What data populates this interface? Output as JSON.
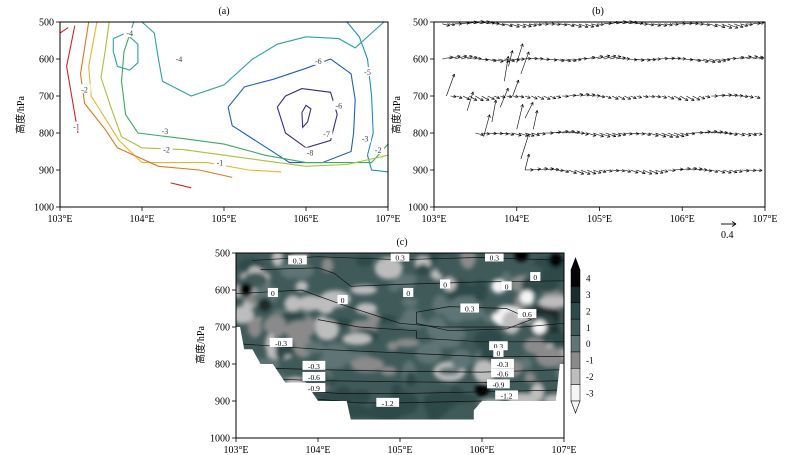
{
  "chart_data": [
    {
      "panel": "(a)",
      "type": "contour",
      "ylabel": "高度/hPa",
      "x_ticks": [
        "103°E",
        "104°E",
        "105°E",
        "106°E",
        "107°E"
      ],
      "y_ticks": [
        "500",
        "600",
        "700",
        "800",
        "900",
        "1000"
      ],
      "xlim": [
        103,
        107
      ],
      "ylim": [
        500,
        1000
      ],
      "y_inverted": true,
      "contour_labels": [
        "-4",
        "-4",
        "-2",
        "-1",
        "-3",
        "-2",
        "-1",
        "-6",
        "-7",
        "-6",
        "-8",
        "-5",
        "-3",
        "-2"
      ],
      "contours": [
        {
          "level": -8,
          "color": "#3b2a8c",
          "points": [
            [
              105.65,
              730
            ],
            [
              105.75,
              700
            ],
            [
              105.95,
              680
            ],
            [
              106.3,
              690
            ],
            [
              106.38,
              750
            ],
            [
              106.3,
              820
            ],
            [
              106.0,
              840
            ],
            [
              105.75,
              800
            ],
            [
              105.65,
              730
            ]
          ]
        },
        {
          "level": -7,
          "color": "#3b2a8c",
          "points": [
            [
              105.95,
              745
            ],
            [
              106.0,
              725
            ],
            [
              106.06,
              735
            ],
            [
              106.02,
              770
            ],
            [
              105.96,
              785
            ],
            [
              105.95,
              745
            ]
          ]
        },
        {
          "level": -6,
          "color": "#1f5fbf",
          "points": [
            [
              105.05,
              730
            ],
            [
              105.25,
              675
            ],
            [
              105.6,
              655
            ],
            [
              106.0,
              625
            ],
            [
              106.3,
              600
            ],
            [
              106.55,
              640
            ],
            [
              106.6,
              710
            ],
            [
              106.58,
              800
            ],
            [
              106.55,
              850
            ],
            [
              106.2,
              880
            ],
            [
              105.8,
              880
            ],
            [
              105.45,
              830
            ],
            [
              105.1,
              780
            ],
            [
              105.05,
              730
            ]
          ]
        },
        {
          "level": -5,
          "color": "#1e8fbf",
          "points": [
            [
              106.5,
              500
            ],
            [
              106.65,
              540
            ],
            [
              106.75,
              600
            ],
            [
              106.8,
              700
            ],
            [
              106.82,
              800
            ],
            [
              106.75,
              860
            ],
            [
              106.8,
              900
            ],
            [
              107.0,
              905
            ]
          ]
        },
        {
          "level": -4,
          "color": "#2aa3a3",
          "points": [
            [
              104.0,
              500
            ],
            [
              104.15,
              530
            ],
            [
              104.2,
              600
            ],
            [
              104.25,
              660
            ],
            [
              104.6,
              700
            ],
            [
              105.0,
              670
            ],
            [
              105.35,
              600
            ],
            [
              105.65,
              560
            ],
            [
              106.0,
              540
            ],
            [
              106.4,
              545
            ],
            [
              106.6,
              570
            ],
            [
              106.85,
              520
            ],
            [
              106.95,
              500
            ]
          ]
        },
        {
          "level": -4,
          "color": "#2aa3a3",
          "points": [
            [
              103.65,
              545
            ],
            [
              103.8,
              530
            ],
            [
              103.95,
              560
            ],
            [
              103.95,
              610
            ],
            [
              103.85,
              630
            ],
            [
              103.7,
              620
            ],
            [
              103.65,
              580
            ],
            [
              103.65,
              545
            ]
          ]
        },
        {
          "level": -3,
          "color": "#3cab64",
          "points": [
            [
              103.9,
              500
            ],
            [
              103.78,
              580
            ],
            [
              103.75,
              660
            ],
            [
              103.8,
              750
            ],
            [
              103.95,
              800
            ],
            [
              104.5,
              815
            ],
            [
              105.0,
              830
            ],
            [
              105.5,
              860
            ],
            [
              106.0,
              880
            ],
            [
              106.5,
              880
            ],
            [
              106.8,
              880
            ],
            [
              107.0,
              830
            ]
          ]
        },
        {
          "level": -2,
          "color": "#a8c23a",
          "points": [
            [
              103.6,
              500
            ],
            [
              103.55,
              580
            ],
            [
              103.5,
              650
            ],
            [
              103.62,
              730
            ],
            [
              103.75,
              810
            ],
            [
              104.0,
              840
            ],
            [
              104.5,
              845
            ],
            [
              105.0,
              860
            ],
            [
              105.5,
              875
            ],
            [
              106.0,
              890
            ],
            [
              106.5,
              885
            ],
            [
              107.0,
              860
            ]
          ]
        },
        {
          "level": -1,
          "color": "#e6b630",
          "points": [
            [
              103.45,
              500
            ],
            [
              103.35,
              620
            ],
            [
              103.38,
              700
            ],
            [
              103.55,
              760
            ],
            [
              103.72,
              820
            ],
            [
              104.0,
              880
            ],
            [
              104.3,
              880
            ],
            [
              104.8,
              880
            ],
            [
              105.3,
              900
            ],
            [
              105.7,
              905
            ]
          ]
        },
        {
          "level": 0,
          "color": "#e07820",
          "points": [
            [
              103.35,
              500
            ],
            [
              103.25,
              640
            ],
            [
              103.3,
              720
            ],
            [
              103.55,
              790
            ],
            [
              103.7,
              840
            ],
            [
              104.2,
              890
            ],
            [
              104.7,
              900
            ],
            [
              105.1,
              920
            ]
          ]
        },
        {
          "level": 1,
          "color": "#d62020",
          "points": [
            [
              103.18,
              510
            ],
            [
              103.08,
              620
            ],
            [
              103.15,
              710
            ],
            [
              103.22,
              800
            ]
          ]
        },
        {
          "level": 1,
          "color": "#d62020",
          "points": [
            [
              104.35,
              935
            ],
            [
              104.6,
              948
            ]
          ]
        },
        {
          "level": 1,
          "color": "#d62020",
          "points": [
            [
              103.0,
              530
            ],
            [
              103.1,
              515
            ]
          ]
        }
      ]
    },
    {
      "panel": "(b)",
      "type": "vector",
      "ylabel": "高度/hPa",
      "x_ticks": [
        "103°E",
        "104°E",
        "105°E",
        "106°E",
        "107°E"
      ],
      "y_ticks": [
        "500",
        "600",
        "700",
        "800",
        "900",
        "1000"
      ],
      "xlim": [
        103,
        107
      ],
      "ylim": [
        500,
        1000
      ],
      "y_inverted": true,
      "reference_vector_label": "0.4",
      "vector_rows": [
        {
          "level": 505,
          "x_start": 103.1,
          "x_end": 107.0,
          "u": 0.25,
          "w": -0.01
        },
        {
          "level": 600,
          "x_start": 103.1,
          "x_end": 107.0,
          "u": 0.3,
          "w": 0.0
        },
        {
          "level": 700,
          "x_start": 103.2,
          "x_end": 107.0,
          "u": 0.2,
          "w": -0.02
        },
        {
          "level": 800,
          "x_start": 103.5,
          "x_end": 107.0,
          "u": 0.3,
          "w": -0.02
        },
        {
          "level": 900,
          "x_start": 104.1,
          "x_end": 107.0,
          "u": 0.25,
          "w": -0.02
        }
      ],
      "updraft_arrows": [
        [
          103.9,
          620
        ],
        [
          104.0,
          610
        ],
        [
          104.05,
          640
        ],
        [
          103.85,
          660
        ],
        [
          103.95,
          700
        ],
        [
          103.8,
          730
        ],
        [
          103.7,
          770
        ],
        [
          104.0,
          790
        ],
        [
          104.1,
          760
        ],
        [
          104.2,
          790
        ],
        [
          103.6,
          810
        ],
        [
          104.05,
          870
        ],
        [
          104.1,
          900
        ],
        [
          103.4,
          740
        ],
        [
          103.15,
          700
        ]
      ]
    },
    {
      "panel": "(c)",
      "type": "heatmap",
      "ylabel": "高度/hPa",
      "x_ticks": [
        "103°E",
        "104°E",
        "105°E",
        "106°E",
        "107°E"
      ],
      "y_ticks": [
        "500",
        "600",
        "700",
        "800",
        "900",
        "1000"
      ],
      "xlim": [
        103,
        107
      ],
      "ylim": [
        500,
        1000
      ],
      "y_inverted": true,
      "colorbar_ticks": [
        "4",
        "3",
        "2",
        "1",
        "0",
        "-1",
        "-2",
        "-3"
      ],
      "colorbar_range": [
        -3,
        4
      ],
      "colorbar_colors": [
        "#f5f5f5",
        "#bdbdbd",
        "#8a8a8a",
        "#5f7474",
        "#405a5a",
        "#2d4a4a",
        "#1a2c2c",
        "#050505"
      ],
      "contour_labels": [
        "0.3",
        "0.3",
        "0.3",
        "0",
        "0",
        "0",
        "0",
        "0",
        "0.3",
        "0.6",
        "0",
        "-0.3",
        "-0.3",
        "-0.6",
        "-0.9",
        "-1.2",
        "0.3",
        "0",
        "-0.3",
        "-0.6",
        "-0.9",
        "-1.2"
      ],
      "terrain_mask": [
        [
          103.0,
          700
        ],
        [
          103.05,
          700
        ],
        [
          103.1,
          760
        ],
        [
          103.2,
          760
        ],
        [
          103.3,
          800
        ],
        [
          103.45,
          800
        ],
        [
          103.6,
          850
        ],
        [
          103.85,
          850
        ],
        [
          104.0,
          900
        ],
        [
          104.35,
          900
        ],
        [
          104.4,
          950
        ],
        [
          105.9,
          950
        ],
        [
          105.9,
          925
        ],
        [
          106.0,
          900
        ],
        [
          106.9,
          900
        ],
        [
          106.95,
          800
        ],
        [
          107.0,
          800
        ]
      ]
    }
  ]
}
